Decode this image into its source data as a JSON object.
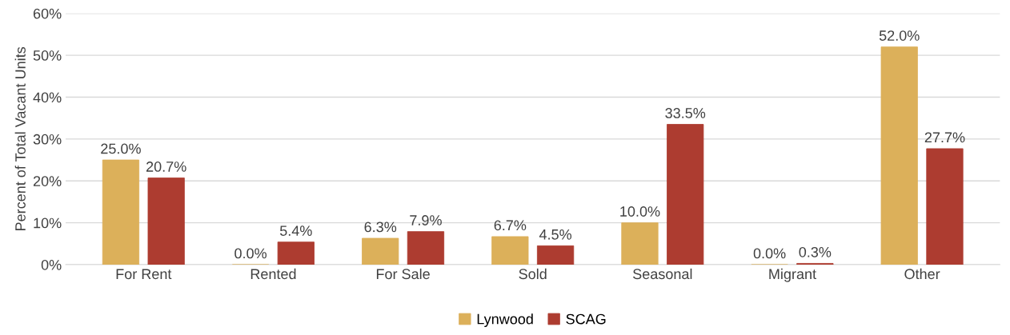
{
  "chart_data": {
    "type": "bar",
    "ylabel": "Percent of Total Vacant Units",
    "categories": [
      "For Rent",
      "Rented",
      "For Sale",
      "Sold",
      "Seasonal",
      "Migrant",
      "Other"
    ],
    "series": [
      {
        "name": "Lynwood",
        "color": "#dcb05a",
        "values": [
          25.0,
          0.0,
          6.3,
          6.7,
          10.0,
          0.0,
          52.0
        ],
        "value_labels": [
          "25.0%",
          "0.0%",
          "6.3%",
          "6.7%",
          "10.0%",
          "0.0%",
          "52.0%"
        ]
      },
      {
        "name": "SCAG",
        "color": "#ad3c30",
        "values": [
          20.7,
          5.4,
          7.9,
          4.5,
          33.5,
          0.3,
          27.7
        ],
        "value_labels": [
          "20.7%",
          "5.4%",
          "7.9%",
          "4.5%",
          "33.5%",
          "0.3%",
          "27.7%"
        ]
      }
    ],
    "ylim": [
      0,
      60
    ],
    "yticks": [
      {
        "value": 0,
        "label": "0%"
      },
      {
        "value": 10,
        "label": "10%"
      },
      {
        "value": 20,
        "label": "20%"
      },
      {
        "value": 30,
        "label": "30%"
      },
      {
        "value": 40,
        "label": "40%"
      },
      {
        "value": 50,
        "label": "50%"
      },
      {
        "value": 60,
        "label": "60%"
      }
    ],
    "grid": "y",
    "legend": "bottom"
  }
}
